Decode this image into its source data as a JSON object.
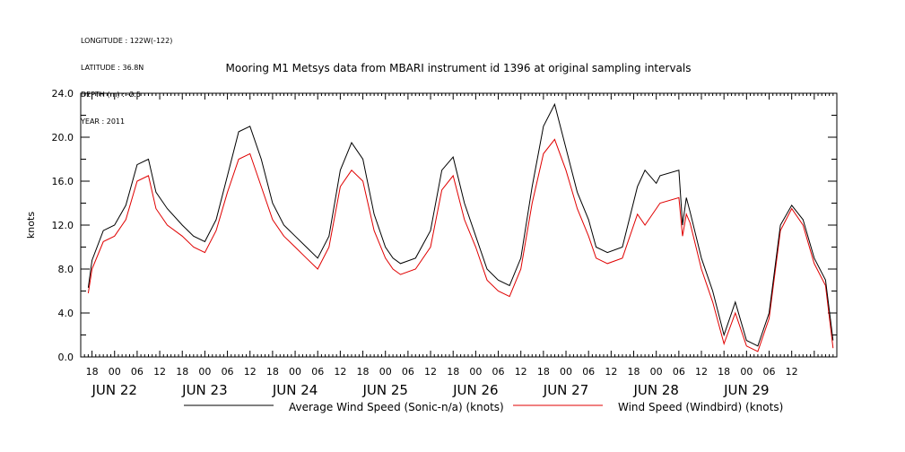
{
  "meta": {
    "longitude": "LONGITUDE : 122W(-122)",
    "latitude": "LATITUDE : 36.8N",
    "depth": "DEPTH (m) : -2.5",
    "year": "YEAR : 2011"
  },
  "colors": {
    "series1": "#000000",
    "series2": "#e00000",
    "axis": "#000000"
  },
  "chart_data": {
    "type": "line",
    "title": "Mooring M1 Metsys data from MBARI instrument id 1396 at original sampling intervals",
    "ylabel": "knots",
    "xlabel": "",
    "ylim": [
      0,
      24
    ],
    "yticks": [
      "0.0",
      "4.0",
      "8.0",
      "12.0",
      "16.0",
      "20.0",
      "24.0"
    ],
    "x_hour_ticks": [
      "18",
      "00",
      "06",
      "12",
      "18",
      "00",
      "06",
      "12",
      "18",
      "00",
      "06",
      "12",
      "18",
      "00",
      "06",
      "12",
      "18",
      "00",
      "06",
      "12",
      "18",
      "00",
      "06",
      "12",
      "18",
      "00",
      "06",
      "12",
      "18",
      "00",
      "06",
      "12"
    ],
    "x_date_labels": [
      "JUN 22",
      "JUN 23",
      "JUN 24",
      "JUN 25",
      "JUN 26",
      "JUN 27",
      "JUN 28",
      "JUN 29"
    ],
    "x_unit": "hours from 2011-06-21 18:00",
    "xlim": [
      -3,
      198
    ],
    "legend": [
      "Average Wind Speed (Sonic-n/a) (knots)",
      "Wind Speed (Windbird) (knots)"
    ],
    "series": [
      {
        "name": "Average Wind Speed (Sonic-n/a) (knots)",
        "x": [
          -1,
          0,
          3,
          6,
          9,
          12,
          15,
          17,
          20,
          24,
          27,
          30,
          33,
          36,
          39,
          42,
          45,
          48,
          51,
          54,
          57,
          60,
          63,
          66,
          69,
          72,
          75,
          78,
          80,
          82,
          86,
          90,
          93,
          96,
          99,
          102,
          105,
          108,
          111,
          114,
          117,
          120,
          123,
          126,
          129,
          132,
          134,
          137,
          141,
          145,
          147,
          150,
          151,
          156,
          157,
          158,
          159,
          162,
          165,
          168,
          171,
          174,
          177,
          180,
          183,
          186,
          189,
          192,
          195,
          197
        ],
        "y": [
          6.3,
          8.8,
          11.5,
          12,
          13.8,
          17.5,
          18,
          15,
          13.5,
          12,
          11,
          10.5,
          12.5,
          16.5,
          20.5,
          21,
          18,
          14,
          12,
          11,
          10,
          9,
          11,
          17,
          19.5,
          18,
          13,
          10,
          9,
          8.5,
          9,
          11.5,
          17,
          18.2,
          14,
          11,
          8,
          7,
          6.5,
          9,
          15.5,
          21,
          23,
          19,
          15,
          12.5,
          10,
          9.5,
          10,
          15.5,
          17,
          15.8,
          16.5,
          17,
          12,
          14.5,
          13.2,
          9,
          6,
          2,
          5,
          1.5,
          1,
          4,
          12,
          13.8,
          12.5,
          9,
          7,
          1.5
        ]
      },
      {
        "name": "Wind Speed (Windbird) (knots)",
        "x": [
          -1,
          0,
          3,
          6,
          9,
          12,
          15,
          17,
          20,
          24,
          27,
          30,
          33,
          36,
          39,
          42,
          45,
          48,
          51,
          54,
          57,
          60,
          63,
          66,
          69,
          72,
          75,
          78,
          80,
          82,
          86,
          90,
          93,
          96,
          99,
          102,
          105,
          108,
          111,
          114,
          117,
          120,
          123,
          126,
          129,
          132,
          134,
          137,
          141,
          145,
          147,
          150,
          151,
          156,
          157,
          158,
          159,
          162,
          165,
          168,
          171,
          174,
          177,
          180,
          183,
          186,
          189,
          192,
          195,
          197
        ],
        "y": [
          5.8,
          8,
          10.5,
          11,
          12.5,
          16,
          16.5,
          13.5,
          12,
          11,
          10,
          9.5,
          11.5,
          15,
          18,
          18.5,
          15.5,
          12.5,
          11,
          10,
          9,
          8,
          10,
          15.5,
          17,
          16,
          11.5,
          9,
          8,
          7.5,
          8,
          10,
          15.2,
          16.5,
          12.5,
          10,
          7,
          6,
          5.5,
          8,
          14,
          18.5,
          19.8,
          17,
          13.5,
          11,
          9,
          8.5,
          9,
          13,
          12,
          13.5,
          14,
          14.5,
          11,
          13,
          12.2,
          8,
          5,
          1.2,
          4,
          1,
          0.5,
          3.5,
          11.5,
          13.5,
          12,
          8.5,
          6.5,
          0.8
        ]
      }
    ]
  }
}
